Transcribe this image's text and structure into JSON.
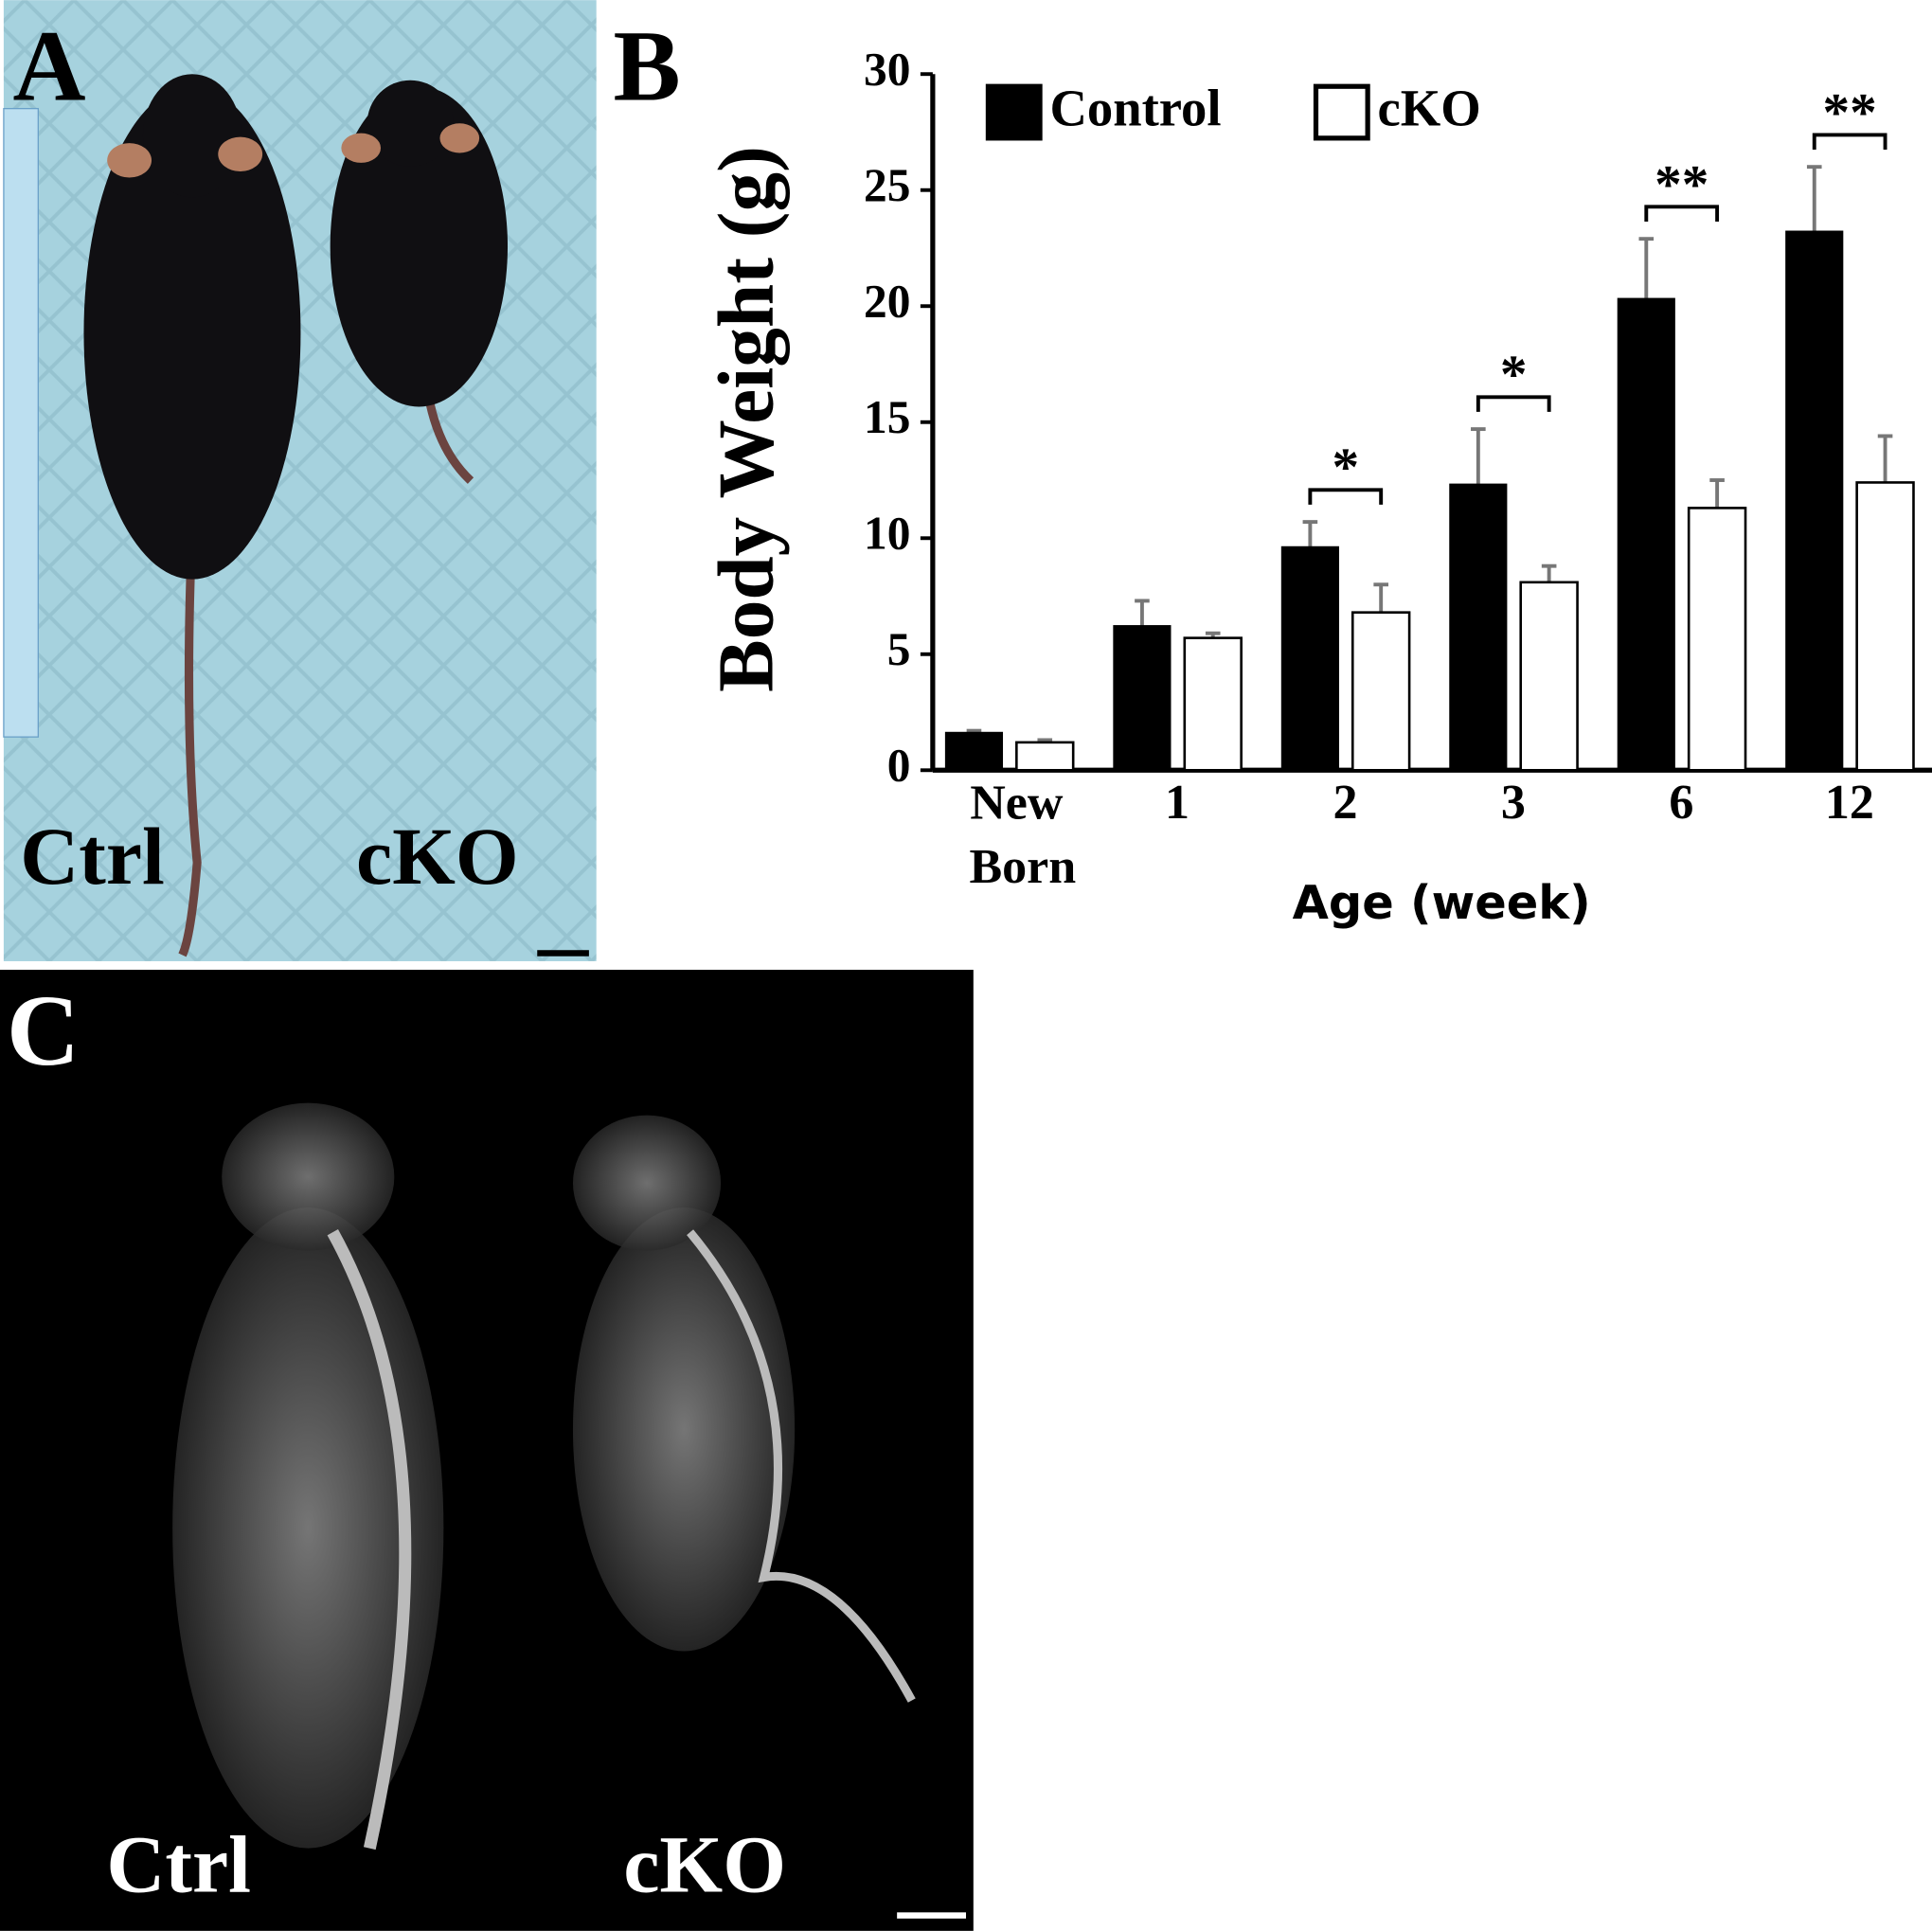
{
  "panel_a": {
    "label": "A",
    "left_label": "Ctrl",
    "right_label": "cKO"
  },
  "chart_data": {
    "type": "bar",
    "panel_label": "B",
    "y_label": "Body Weight (g)",
    "x_label": "Age (week)",
    "categories": [
      "New Born",
      "1",
      "2",
      "3",
      "6",
      "12"
    ],
    "series": [
      {
        "name": "Control",
        "color": "#000000",
        "values": [
          1.6,
          6.2,
          9.6,
          12.3,
          20.3,
          23.2
        ],
        "errors": [
          0.1,
          1.1,
          1.1,
          2.4,
          2.6,
          2.8
        ]
      },
      {
        "name": "cKO",
        "color": "#ffffff",
        "values": [
          1.2,
          5.7,
          6.8,
          8.1,
          11.3,
          12.4
        ],
        "errors": [
          0.1,
          0.2,
          1.2,
          0.7,
          1.2,
          2.0
        ]
      }
    ],
    "annotations": [
      {
        "text": "*",
        "category": "2"
      },
      {
        "text": "*",
        "category": "3"
      },
      {
        "text": "**",
        "category": "6"
      },
      {
        "text": "**",
        "category": "12"
      }
    ],
    "ylim": [
      0,
      30
    ],
    "yticks": [
      0,
      5,
      10,
      15,
      20,
      25,
      30
    ],
    "legend": "top"
  },
  "panel_c": {
    "label": "C",
    "left_label": "Ctrl",
    "right_label": "cKO"
  }
}
